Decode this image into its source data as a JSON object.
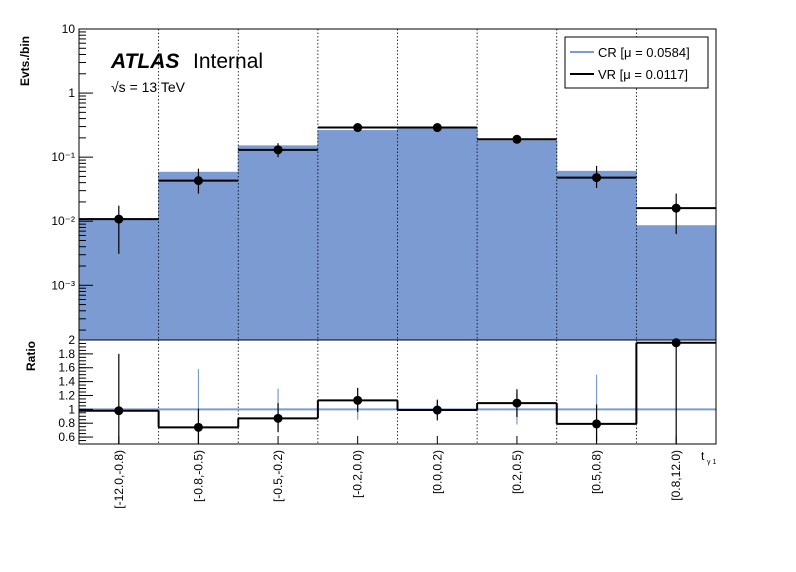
{
  "chart_data": [
    {
      "type": "bar",
      "panel": "main",
      "ylabel": "Evts./bin",
      "yscale": "log",
      "ylim": [
        0.00014,
        10
      ],
      "yticks": [
        "10⁻³",
        "10⁻²",
        "10⁻¹",
        "1",
        "10"
      ],
      "annotation": {
        "experiment": "ATLAS",
        "status": "Internal",
        "energy": "√s = 13 TeV"
      },
      "legend_position": "top-right",
      "categories": [
        "[-12.0,-0.8)",
        "[-0.8,-0.5)",
        "[-0.5,-0.2)",
        "[-0.2,0.0)",
        "[0.0,0.2)",
        "[0.2,0.5)",
        "[0.5,0.8)",
        "[0.8,12.0)"
      ],
      "series": [
        {
          "name": "CR [μ = 0.0584]",
          "style": "filled-histogram",
          "color": "#7b9bd2",
          "values": [
            0.011,
            0.058,
            0.15,
            0.26,
            0.29,
            0.18,
            0.06,
            0.0085
          ]
        },
        {
          "name": "VR [μ = 0.0117]",
          "style": "line-histogram-with-points",
          "color": "#000000",
          "values": [
            0.0108,
            0.043,
            0.13,
            0.29,
            0.29,
            0.19,
            0.048,
            0.016
          ],
          "err_low": [
            0.0077,
            0.016,
            0.03,
            0.03,
            0.03,
            0.025,
            0.015,
            0.0097
          ],
          "err_high": [
            0.0067,
            0.023,
            0.035,
            0.03,
            0.03,
            0.03,
            0.025,
            0.011
          ]
        }
      ]
    },
    {
      "type": "line",
      "panel": "ratio",
      "ylabel": "Ratio",
      "xlabel": "t",
      "xlabel_sub": "γ 1",
      "ylim": [
        0.5,
        2
      ],
      "yticks": [
        "0.6",
        "0.8",
        "1",
        "1.2",
        "1.4",
        "1.6",
        "1.8",
        "2"
      ],
      "reference_line": 1,
      "categories": [
        "[-12.0,-0.8)",
        "[-0.8,-0.5)",
        "[-0.5,-0.2)",
        "[-0.2,0.0)",
        "[0.0,0.2)",
        "[0.2,0.5)",
        "[0.5,0.8)",
        "[0.8,12.0)"
      ],
      "ratio_values": [
        0.98,
        0.74,
        0.87,
        1.13,
        0.99,
        1.09,
        0.79,
        1.96
      ],
      "ratio_err_low": [
        0.48,
        0.24,
        0.2,
        0.17,
        0.15,
        0.2,
        0.25,
        1.5
      ],
      "ratio_err_high": [
        0.82,
        0.27,
        0.22,
        0.18,
        0.15,
        0.2,
        0.28,
        1.0
      ],
      "cr_err": [
        0.0,
        0.58,
        0.3,
        0.15,
        0.1,
        0.22,
        0.5,
        0.0
      ]
    }
  ]
}
